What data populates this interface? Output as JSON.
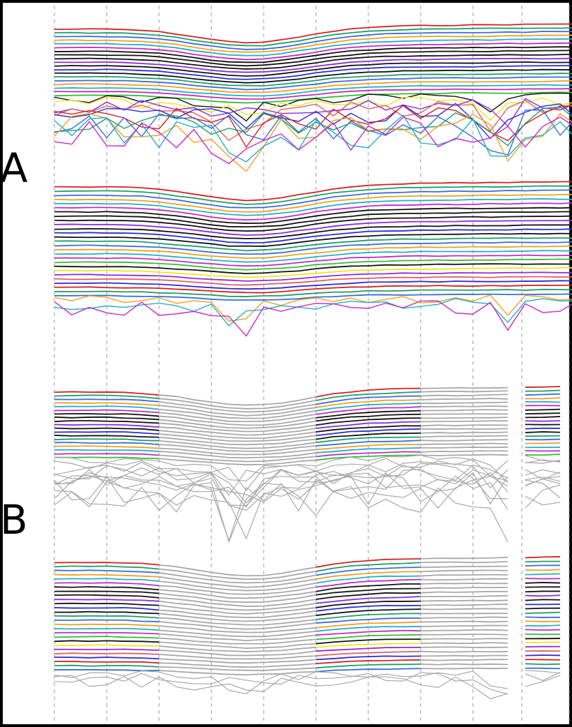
{
  "figure": {
    "panel_labels": [
      "A",
      "B"
    ],
    "background": "#ffffff",
    "frame_color": "#000000",
    "grid_color": "#9a9a9a",
    "muted_color": "#a8a8a8",
    "palette": [
      "#d62020",
      "#1f9e6a",
      "#3c6bd8",
      "#f0a020",
      "#20b0c8",
      "#c828c8",
      "#30c030",
      "#101010",
      "#e8e820",
      "#8a2be2",
      "#e06060",
      "#2a2ad8"
    ]
  },
  "chart_data": [
    {
      "panel": "A",
      "type": "line",
      "description_level": "raw",
      "groups": [
        {
          "id": "A-top",
          "n_series": 30,
          "min_series_gap": 1,
          "jagged_from_series": 19,
          "emphasis": "dark-core"
        },
        {
          "id": "A-bottom",
          "n_series": 30,
          "min_series_gap": 1,
          "jagged_from_series": 27,
          "emphasis": "dark-top"
        }
      ],
      "n_vertical_gridlines": 11
    },
    {
      "panel": "B",
      "type": "line",
      "groups": [
        {
          "id": "B-top",
          "n_series": 30,
          "jagged_from_series": 19
        },
        {
          "id": "B-bottom",
          "n_series": 30,
          "jagged_from_series": 27
        }
      ],
      "colored_segments": [
        [
          0,
          2
        ],
        [
          5,
          7
        ],
        [
          9,
          10
        ]
      ],
      "grey_segments": [
        [
          2,
          5
        ],
        [
          7,
          9
        ]
      ],
      "n_vertical_gridlines": 11
    }
  ]
}
